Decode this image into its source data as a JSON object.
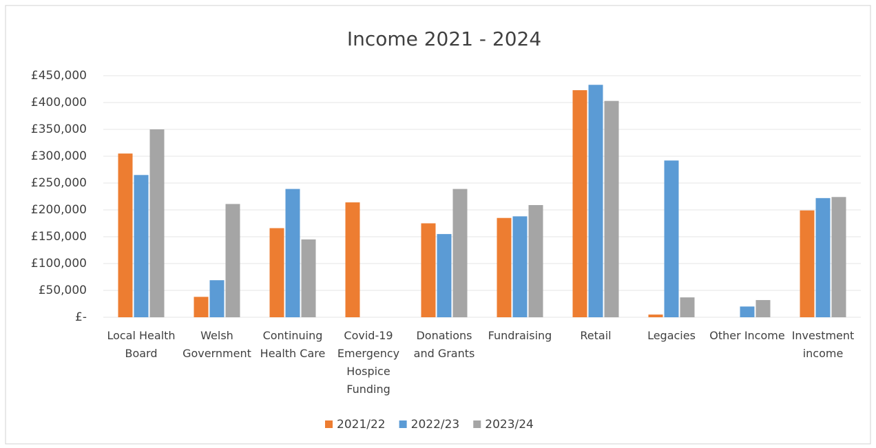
{
  "chart_data": {
    "type": "bar",
    "title": "Income 2021 - 2024",
    "categories": [
      "Local Health Board",
      "Welsh Government",
      "Continuing Health Care",
      "Covid-19 Emergency Hospice Funding",
      "Donations and Grants",
      "Fundraising",
      "Retail",
      "Legacies",
      "Other Income",
      "Investment income"
    ],
    "series": [
      {
        "name": "2021/22",
        "color": "#ed7d31",
        "values": [
          305000,
          38000,
          166000,
          214000,
          175000,
          185000,
          423000,
          5000,
          0,
          199000
        ]
      },
      {
        "name": "2022/23",
        "color": "#5b9bd5",
        "values": [
          265000,
          69000,
          239000,
          0,
          155000,
          188000,
          433000,
          292000,
          20000,
          222000
        ]
      },
      {
        "name": "2023/24",
        "color": "#a5a5a5",
        "values": [
          350000,
          211000,
          145000,
          0,
          239000,
          209000,
          403000,
          37000,
          32000,
          224000
        ]
      }
    ],
    "ylim": [
      0,
      450000
    ],
    "yticks": [
      {
        "value": 0,
        "label": "£-"
      },
      {
        "value": 50000,
        "label": "£50,000"
      },
      {
        "value": 100000,
        "label": "£100,000"
      },
      {
        "value": 150000,
        "label": "£150,000"
      },
      {
        "value": 200000,
        "label": "£200,000"
      },
      {
        "value": 250000,
        "label": "£250,000"
      },
      {
        "value": 300000,
        "label": "£300,000"
      },
      {
        "value": 350000,
        "label": "£350,000"
      },
      {
        "value": 400000,
        "label": "£400,000"
      },
      {
        "value": 450000,
        "label": "£450,000"
      }
    ],
    "grid": true,
    "legend": "bottom"
  }
}
